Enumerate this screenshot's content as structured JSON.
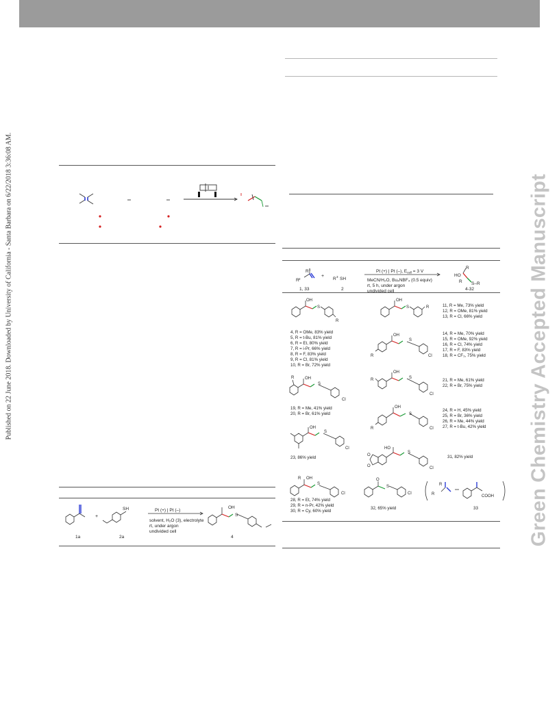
{
  "side_notes": {
    "published": "Published on 22 June 2018. Downloaded by University of California - Santa Barbara on 6/22/2018 3:36:08 AM.",
    "watermark": "Green Chemistry Accepted Manuscript"
  },
  "table1": {
    "labels": {
      "r1": "R",
      "r1sup": "1",
      "r2": "R",
      "r2sup": "2",
      "r3": "R",
      "r3sup": "3",
      "sh": "SH",
      "plus": "+",
      "ent_1_33": "1, 33",
      "ent_2": "2",
      "ent_4_32": "4-32",
      "ho": "HO",
      "s_r3": "S–R",
      "cond_electrodes": "Pt (+) | Pt (–), E",
      "cond_ecell": "cell",
      "cond_volt": " = 3 V",
      "cond_solvent": "MeCN/H₂O, Bu₄NBF₄ (0.5 equiv)",
      "cond_rt": "rt, 5 h, under argon",
      "cond_cell": "undivided cell"
    },
    "entries": [
      "4, R = OMe, 83% yield",
      "5, R = t-Bu, 81% yield",
      "6, R = Et, 80% yield",
      "7, R = i-Pr, 66% yield",
      "8, R = F, 83% yield",
      "9, R = Cl, 81% yield",
      "10, R = Br, 72% yield",
      "11, R = Me, 73% yield",
      "12, R = OMe, 81% yield",
      "13, R = Cl, 66% yield",
      "14, R = Me, 70% yield",
      "15, R = OMe, 92% yield",
      "16, R = Cl, 74% yield",
      "17, R = F, 83% yield",
      "18, R = CF₃, 75% yield",
      "19, R = Me, 41% yield",
      "20, R = Br, 61% yield",
      "21, R = Me, 61% yield",
      "22, R = Br, 75% yield",
      "23, 86% yield",
      "24, R = H, 45% yield",
      "25, R = Br, 36% yield",
      "26, R = Me, 44% yield",
      "27, R = t-Bu, 42% yield",
      "31, 82% yield",
      "28, R = Et, 74% yield",
      "29, R = n-Pr, 42% yield",
      "30, R = Cy, 60% yield",
      "32, 65% yield",
      "33"
    ],
    "struct": {
      "oh": "OH",
      "s": "S",
      "r": "R",
      "cl": "Cl",
      "ho": "HO",
      "o": "O",
      "cooh": "COOH"
    }
  },
  "scheme2": {
    "sh": "SH",
    "plus": "+",
    "oh": "OH",
    "s": "S",
    "ent_1a": "1a",
    "ent_2a": "2a",
    "ent_4": "4",
    "cond_electrodes": "Pt (+) | Pt (–)",
    "cond_solvent": "solvent, H₂O (3), electrolyte",
    "cond_rt": "rt, under argon",
    "cond_cell": "undivided cell"
  },
  "colors": {
    "topbar": "#9b9b9b",
    "watermark": "#c4c4c4",
    "bond_blue": "#2b3bd6",
    "bond_green": "#1a9a35",
    "bond_red": "#d42020"
  }
}
